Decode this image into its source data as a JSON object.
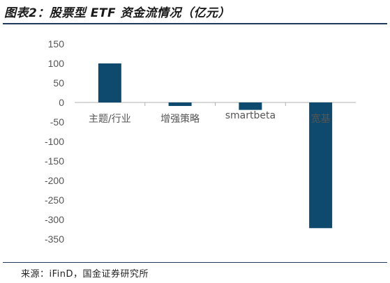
{
  "header": {
    "title": "图表2：股票型 ETF 资金流情况（亿元）"
  },
  "footer": {
    "source": "来源：iFinD，国金证券研究所"
  },
  "chart_data": {
    "type": "bar",
    "title": "图表2：股票型 ETF 资金流情况（亿元）",
    "xlabel": "",
    "ylabel": "",
    "categories": [
      "主题/行业",
      "增强策略",
      "smartbeta",
      "宽基"
    ],
    "values": [
      100,
      -9,
      -19,
      -322
    ],
    "ylim": [
      -350,
      150
    ],
    "yticks": [
      150,
      100,
      50,
      0,
      -50,
      -100,
      -150,
      -200,
      -250,
      -300,
      -350
    ],
    "grid": false,
    "legend": "none",
    "colors": {
      "bar": "#0e4a6e",
      "axis": "#b0b0b0"
    }
  }
}
